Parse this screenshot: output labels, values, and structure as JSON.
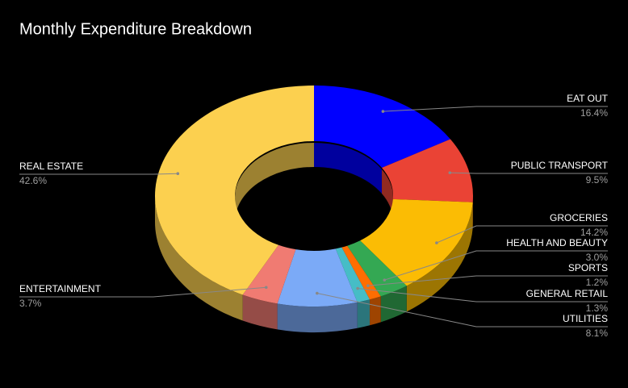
{
  "chart_data": {
    "type": "donut3d",
    "title": "Monthly Expenditure Breakdown",
    "categories": [
      "EAT OUT",
      "PUBLIC TRANSPORT",
      "GROCERIES",
      "HEALTH AND BEAUTY",
      "SPORTS",
      "GENERAL RETAIL",
      "UTILITIES",
      "ENTERTAINMENT",
      "REAL ESTATE"
    ],
    "values": [
      16.4,
      9.5,
      14.2,
      3.0,
      1.2,
      1.3,
      8.1,
      3.7,
      42.6
    ],
    "value_labels": [
      "16.4%",
      "9.5%",
      "14.2%",
      "3.0%",
      "1.2%",
      "1.3%",
      "8.1%",
      "3.7%",
      "42.6%"
    ],
    "colors": [
      "#0000ff",
      "#ea4335",
      "#fbbc04",
      "#34a853",
      "#ff6d01",
      "#46bdc6",
      "#7baaf7",
      "#f07b72",
      "#fcd04f"
    ]
  }
}
